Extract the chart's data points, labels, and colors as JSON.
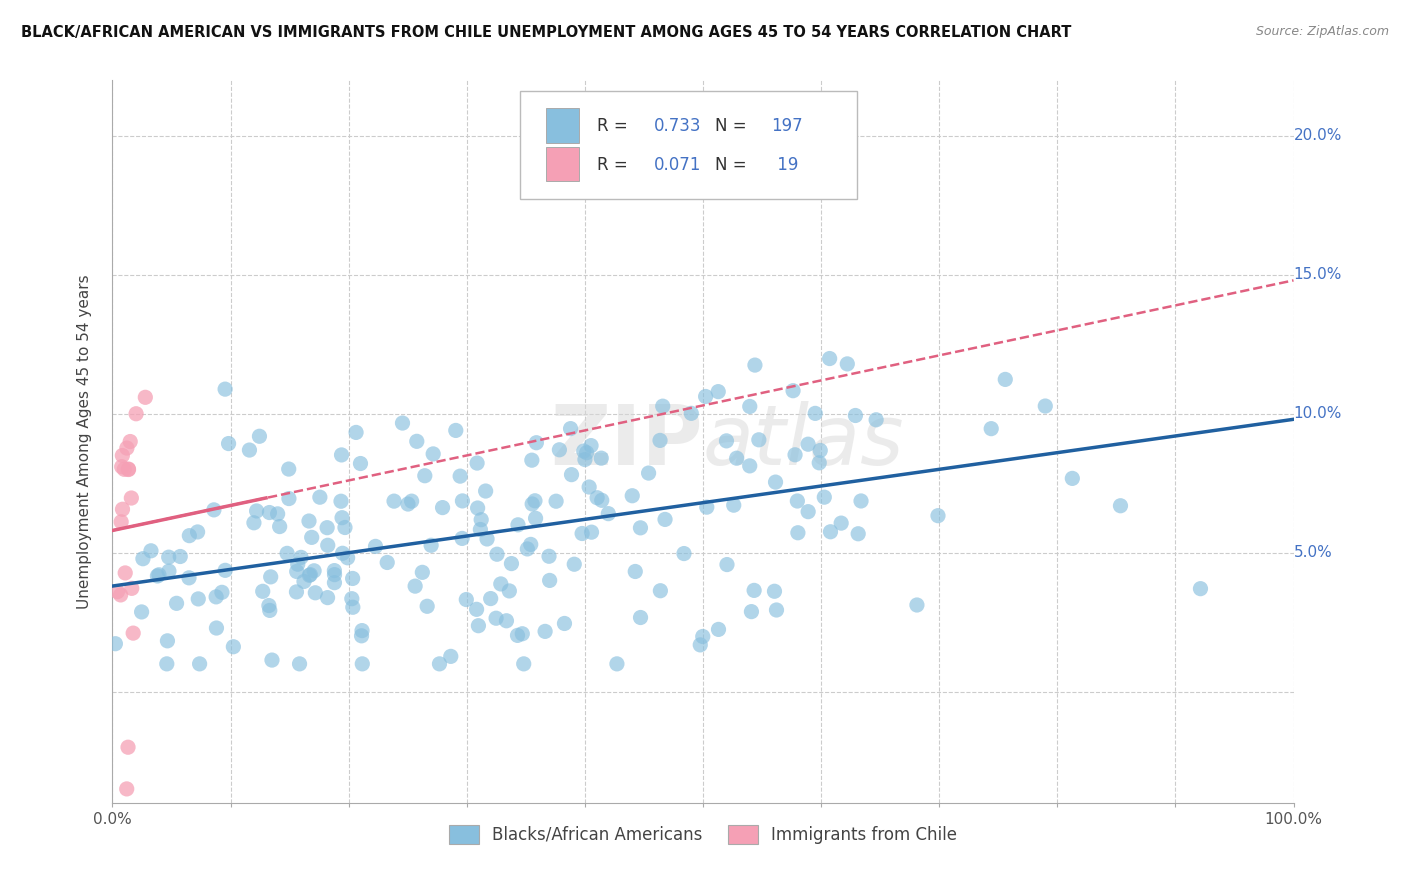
{
  "title": "BLACK/AFRICAN AMERICAN VS IMMIGRANTS FROM CHILE UNEMPLOYMENT AMONG AGES 45 TO 54 YEARS CORRELATION CHART",
  "source": "Source: ZipAtlas.com",
  "ylabel": "Unemployment Among Ages 45 to 54 years",
  "xlim": [
    0,
    1.0
  ],
  "ylim": [
    -0.04,
    0.22
  ],
  "xticks": [
    0.0,
    0.1,
    0.2,
    0.3,
    0.4,
    0.5,
    0.6,
    0.7,
    0.8,
    0.9,
    1.0
  ],
  "yticks": [
    0.0,
    0.05,
    0.1,
    0.15,
    0.2
  ],
  "xtick_labels": [
    "0.0%",
    "",
    "",
    "",
    "",
    "",
    "",
    "",
    "",
    "",
    "100.0%"
  ],
  "ytick_labels": [
    "",
    "5.0%",
    "10.0%",
    "15.0%",
    "20.0%"
  ],
  "blue_color": "#88bfde",
  "pink_color": "#f5a0b5",
  "line_blue": "#2060a0",
  "line_pink": "#e06080",
  "R_blue": 0.733,
  "N_blue": 197,
  "R_pink": 0.071,
  "N_pink": 19,
  "watermark": "ZIPatlas",
  "legend1": "Blacks/African Americans",
  "legend2": "Immigrants from Chile",
  "background_color": "#ffffff",
  "grid_color": "#cccccc",
  "blue_line_y0": 0.038,
  "blue_line_y1": 0.098,
  "pink_line_y0": 0.058,
  "pink_line_y1": 0.148
}
